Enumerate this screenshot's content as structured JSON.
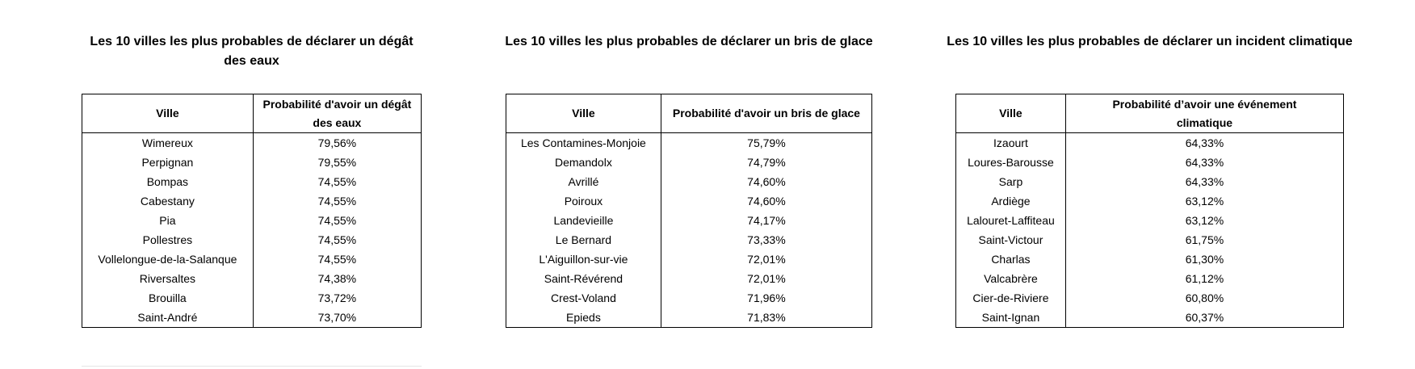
{
  "tables": [
    {
      "title": "Les 10 villes les plus probables de déclarer un dégât des eaux",
      "col_city": "Ville",
      "col_prob": "Probabilité d'avoir un dégât des eaux",
      "rows": [
        {
          "city": "Wimereux",
          "prob": "79,56%"
        },
        {
          "city": "Perpignan",
          "prob": "79,55%"
        },
        {
          "city": "Bompas",
          "prob": "74,55%"
        },
        {
          "city": "Cabestany",
          "prob": "74,55%"
        },
        {
          "city": "Pia",
          "prob": "74,55%"
        },
        {
          "city": "Pollestres",
          "prob": "74,55%"
        },
        {
          "city": "Vollelongue-de-la-Salanque",
          "prob": "74,55%"
        },
        {
          "city": "Riversaltes",
          "prob": "74,38%"
        },
        {
          "city": "Brouilla",
          "prob": "73,72%"
        },
        {
          "city": "Saint-André",
          "prob": "73,70%"
        }
      ]
    },
    {
      "title": "Les 10 villes les plus probables de déclarer un bris de glace",
      "col_city": "Ville",
      "col_prob": "Probabilité d'avoir un bris de glace",
      "rows": [
        {
          "city": "Les Contamines-Monjoie",
          "prob": "75,79%"
        },
        {
          "city": "Demandolx",
          "prob": "74,79%"
        },
        {
          "city": "Avrillé",
          "prob": "74,60%"
        },
        {
          "city": "Poiroux",
          "prob": "74,60%"
        },
        {
          "city": "Landevieille",
          "prob": "74,17%"
        },
        {
          "city": "Le Bernard",
          "prob": "73,33%"
        },
        {
          "city": "L'Aiguillon-sur-vie",
          "prob": "72,01%"
        },
        {
          "city": "Saint-Révérend",
          "prob": "72,01%"
        },
        {
          "city": "Crest-Voland",
          "prob": "71,96%"
        },
        {
          "city": "Epieds",
          "prob": "71,83%"
        }
      ]
    },
    {
      "title": "Les 10 villes les plus probables de déclarer un incident climatique",
      "col_city": "Ville",
      "col_prob": "Probabilité d’avoir une événement climatique",
      "rows": [
        {
          "city": "Izaourt",
          "prob": "64,33%"
        },
        {
          "city": "Loures-Barousse",
          "prob": "64,33%"
        },
        {
          "city": "Sarp",
          "prob": "64,33%"
        },
        {
          "city": "Ardiège",
          "prob": "63,12%"
        },
        {
          "city": "Lalouret-Laffiteau",
          "prob": "63,12%"
        },
        {
          "city": "Saint-Victour",
          "prob": "61,75%"
        },
        {
          "city": "Charlas",
          "prob": "61,30%"
        },
        {
          "city": "Valcabrère",
          "prob": "61,12%"
        },
        {
          "city": "Cier-de-Riviere",
          "prob": "60,80%"
        },
        {
          "city": "Saint-Ignan",
          "prob": "60,37%"
        }
      ]
    }
  ]
}
